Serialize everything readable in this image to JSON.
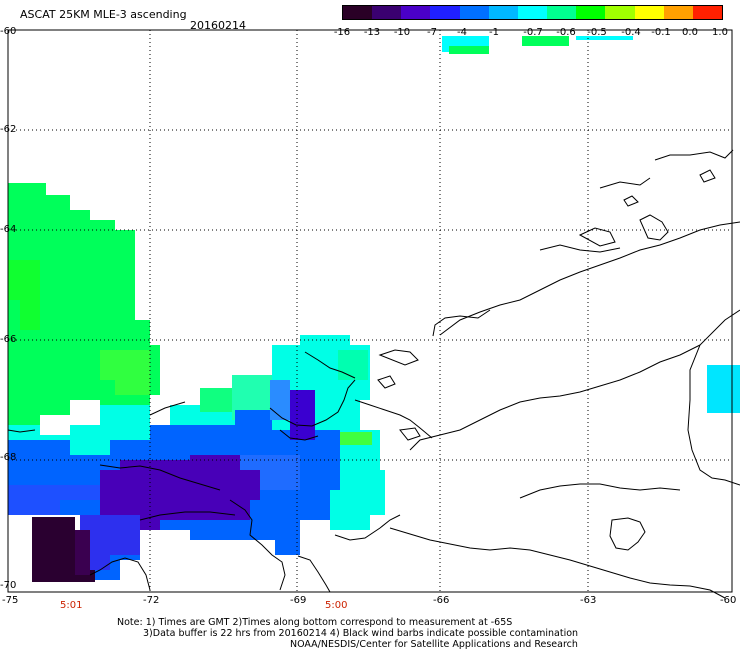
{
  "header": {
    "title": "ASCAT 25KM MLE-3 ascending",
    "date": "20160214"
  },
  "colorbar": {
    "labels": [
      "-16",
      "-13",
      "-10",
      "-7",
      "-4",
      "-1",
      "-0.7",
      "-0.6",
      "-0.5",
      "-0.4",
      "-0.1",
      "0.0",
      "1.0"
    ],
    "colors": [
      "#2a0026",
      "#3a0070",
      "#4a00c8",
      "#2020ff",
      "#0070ff",
      "#00b8ff",
      "#00ffff",
      "#00ff90",
      "#00ff00",
      "#a0ff00",
      "#ffff00",
      "#ffa000",
      "#ff2000"
    ]
  },
  "axes": {
    "lon_labels": [
      "-75",
      "-72",
      "-69",
      "-66",
      "-63",
      "-60"
    ],
    "lat_labels": [
      "-60",
      "-62",
      "-64",
      "-66",
      "-68",
      "-70"
    ]
  },
  "times": [
    "5:01",
    "5:00"
  ],
  "notes": {
    "line1": "Note: 1) Times are GMT 2)Times along bottom correspond to measurement at -65S",
    "line2": "3)Data buffer is 22 hrs from 20160214 4) Black wind barbs indicate possible contamination",
    "line3": "NOAA/NESDIS/Center for Satellite Applications and Research"
  }
}
